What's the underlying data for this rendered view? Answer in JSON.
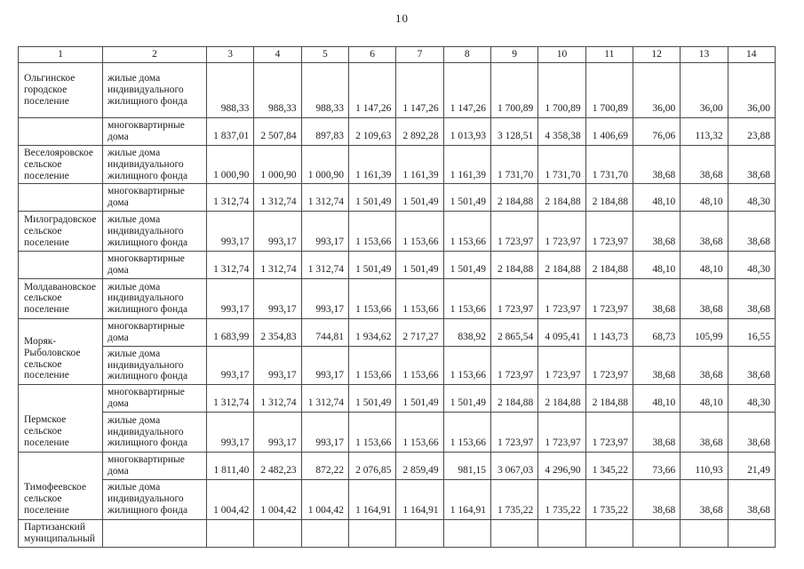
{
  "page_number": "10",
  "table": {
    "columns": [
      "1",
      "2",
      "3",
      "4",
      "5",
      "6",
      "7",
      "8",
      "9",
      "10",
      "11",
      "12",
      "13",
      "14"
    ],
    "rows": [
      {
        "settlement": "Ольгинское городское поселение",
        "settlement_rowspan": 1,
        "category": "жилые дома индивидуального жилищного фонда",
        "values": [
          "988,33",
          "988,33",
          "988,33",
          "1 147,26",
          "1 147,26",
          "1 147,26",
          "1 700,89",
          "1 700,89",
          "1 700,89",
          "36,00",
          "36,00",
          "36,00"
        ]
      },
      {
        "settlement": "",
        "settlement_rowspan": 1,
        "category": "многоквартирные дома",
        "values": [
          "1 837,01",
          "2 507,84",
          "897,83",
          "2 109,63",
          "2 892,28",
          "1 013,93",
          "3 128,51",
          "4 358,38",
          "1 406,69",
          "76,06",
          "113,32",
          "23,88"
        ]
      },
      {
        "settlement": "Веселояровское сельское поселение",
        "settlement_rowspan": 1,
        "category": "жилые дома индивидуального жилищного фонда",
        "values": [
          "1 000,90",
          "1 000,90",
          "1 000,90",
          "1 161,39",
          "1 161,39",
          "1 161,39",
          "1 731,70",
          "1 731,70",
          "1 731,70",
          "38,68",
          "38,68",
          "38,68"
        ]
      },
      {
        "settlement": "",
        "settlement_rowspan": 1,
        "category": "многоквартирные дома",
        "values": [
          "1 312,74",
          "1 312,74",
          "1 312,74",
          "1 501,49",
          "1 501,49",
          "1 501,49",
          "2 184,88",
          "2 184,88",
          "2 184,88",
          "48,10",
          "48,10",
          "48,30"
        ]
      },
      {
        "settlement": "Милоградовское сельское поселение",
        "settlement_rowspan": 1,
        "category": "жилые дома индивидуального жилищного фонда",
        "values": [
          "993,17",
          "993,17",
          "993,17",
          "1 153,66",
          "1 153,66",
          "1 153,66",
          "1 723,97",
          "1 723,97",
          "1 723,97",
          "38,68",
          "38,68",
          "38,68"
        ]
      },
      {
        "settlement": "",
        "settlement_rowspan": 1,
        "category": "многоквартирные дома",
        "values": [
          "1 312,74",
          "1 312,74",
          "1 312,74",
          "1 501,49",
          "1 501,49",
          "1 501,49",
          "2 184,88",
          "2 184,88",
          "2 184,88",
          "48,10",
          "48,10",
          "48,30"
        ]
      },
      {
        "settlement": "Молдавановское сельское поселение",
        "settlement_rowspan": 1,
        "category": "жилые дома индивидуального жилищного фонда",
        "values": [
          "993,17",
          "993,17",
          "993,17",
          "1 153,66",
          "1 153,66",
          "1 153,66",
          "1 723,97",
          "1 723,97",
          "1 723,97",
          "38,68",
          "38,68",
          "38,68"
        ]
      },
      {
        "settlement": "Моряк-Рыболовское сельское поселение",
        "settlement_rowspan": 2,
        "category": "многоквартирные дома",
        "values": [
          "1 683,99",
          "2 354,83",
          "744,81",
          "1 934,62",
          "2 717,27",
          "838,92",
          "2 865,54",
          "4 095,41",
          "1 143,73",
          "68,73",
          "105,99",
          "16,55"
        ]
      },
      {
        "settlement": null,
        "category": "жилые дома индивидуального жилищного фонда",
        "values": [
          "993,17",
          "993,17",
          "993,17",
          "1 153,66",
          "1 153,66",
          "1 153,66",
          "1 723,97",
          "1 723,97",
          "1 723,97",
          "38,68",
          "38,68",
          "38,68"
        ]
      },
      {
        "settlement": "Пермское сельское поселение",
        "settlement_rowspan": 2,
        "category": "многоквартирные дома",
        "values": [
          "1 312,74",
          "1 312,74",
          "1 312,74",
          "1 501,49",
          "1 501,49",
          "1 501,49",
          "2 184,88",
          "2 184,88",
          "2 184,88",
          "48,10",
          "48,10",
          "48,30"
        ]
      },
      {
        "settlement": null,
        "category": "жилые дома индивидуального жилищного фонда",
        "values": [
          "993,17",
          "993,17",
          "993,17",
          "1 153,66",
          "1 153,66",
          "1 153,66",
          "1 723,97",
          "1 723,97",
          "1 723,97",
          "38,68",
          "38,68",
          "38,68"
        ]
      },
      {
        "settlement": "Тимофеевское сельское поселение",
        "settlement_rowspan": 2,
        "category": "многоквартирные дома",
        "values": [
          "1 811,40",
          "2 482,23",
          "872,22",
          "2 076,85",
          "2 859,49",
          "981,15",
          "3 067,03",
          "4 296,90",
          "1 345,22",
          "73,66",
          "110,93",
          "21,49"
        ]
      },
      {
        "settlement": null,
        "category": "жилые дома индивидуального жилищного фонда",
        "values": [
          "1 004,42",
          "1 004,42",
          "1 004,42",
          "1 164,91",
          "1 164,91",
          "1 164,91",
          "1 735,22",
          "1 735,22",
          "1 735,22",
          "38,68",
          "38,68",
          "38,68"
        ]
      },
      {
        "settlement": "Партизанский муниципальный",
        "settlement_rowspan": 1,
        "category": "",
        "values": [
          "",
          "",
          "",
          "",
          "",
          "",
          "",
          "",
          "",
          "",
          "",
          ""
        ]
      }
    ]
  }
}
